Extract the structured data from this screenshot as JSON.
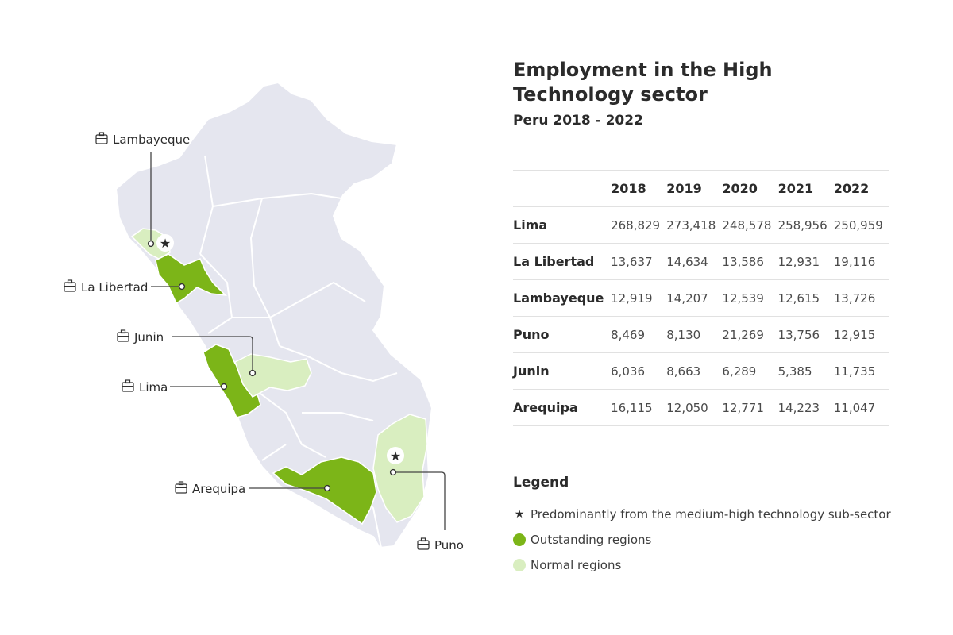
{
  "title": "Employment in the High Technology sector",
  "subtitle": "Peru 2018 - 2022",
  "colors": {
    "outstanding": "#7cb518",
    "normal": "#d9eec0",
    "base": "#e5e6ef",
    "border": "#ffffff"
  },
  "map": {
    "labels": {
      "lambayeque": "Lambayeque",
      "la_libertad": "La Libertad",
      "junin": "Junin",
      "lima": "Lima",
      "arequipa": "Arequipa",
      "puno": "Puno"
    },
    "star": "★",
    "star_regions": [
      "Lambayeque",
      "Puno"
    ]
  },
  "table": {
    "columns": [
      "2018",
      "2019",
      "2020",
      "2021",
      "2022"
    ],
    "rows": [
      {
        "region": "Lima",
        "values": [
          "268,829",
          "273,418",
          "248,578",
          "258,956",
          "250,959"
        ]
      },
      {
        "region": "La Libertad",
        "values": [
          "13,637",
          "14,634",
          "13,586",
          "12,931",
          "19,116"
        ]
      },
      {
        "region": "Lambayeque",
        "values": [
          "12,919",
          "14,207",
          "12,539",
          "12,615",
          "13,726"
        ]
      },
      {
        "region": "Puno",
        "values": [
          "8,469",
          "8,130",
          "21,269",
          "13,756",
          "12,915"
        ]
      },
      {
        "region": "Junin",
        "values": [
          "6,036",
          "8,663",
          "6,289",
          "5,385",
          "11,735"
        ]
      },
      {
        "region": "Arequipa",
        "values": [
          "16,115",
          "12,050",
          "12,771",
          "14,223",
          "11,047"
        ]
      }
    ]
  },
  "legend": {
    "title": "Legend",
    "items": [
      {
        "symbol": "★",
        "label": "Predominantly from the medium-high technology sub-sector"
      },
      {
        "label": "Outstanding regions"
      },
      {
        "label": "Normal regions"
      }
    ]
  }
}
